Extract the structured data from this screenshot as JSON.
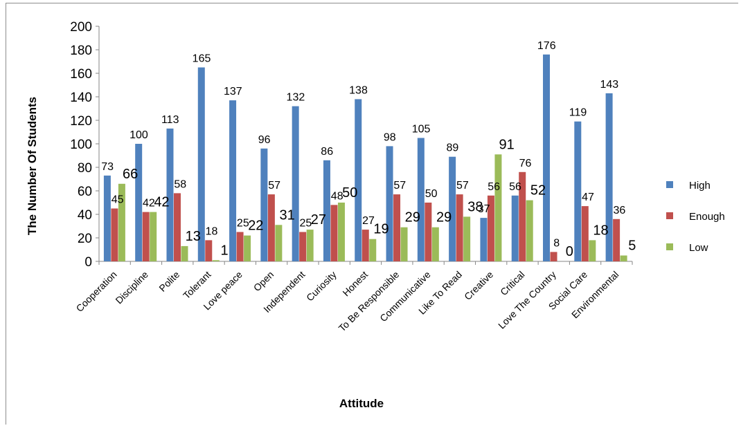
{
  "chart_data": {
    "type": "bar",
    "title": "",
    "xlabel": "Attitude",
    "ylabel": "The Number Of Students",
    "ylim": [
      0,
      200
    ],
    "yticks": [
      0,
      20,
      40,
      60,
      80,
      100,
      120,
      140,
      160,
      180,
      200
    ],
    "grid": false,
    "legend_position": "right",
    "categories": [
      "Cooperation",
      "Discipline",
      "Polite",
      "Tolerant",
      "Love peace",
      "Open",
      "Independent",
      "Curiosity",
      "Honest",
      "To Be Responsible",
      "Communicative",
      "Like To Read",
      "Creative",
      "Critical",
      "Love The Country",
      "Social Care",
      "Environmental"
    ],
    "series": [
      {
        "name": "High",
        "color": "#4f81bd",
        "values": [
          73,
          100,
          113,
          165,
          137,
          96,
          132,
          86,
          138,
          98,
          105,
          89,
          37,
          56,
          176,
          119,
          143
        ]
      },
      {
        "name": "Enough",
        "color": "#c0504d",
        "values": [
          45,
          42,
          58,
          18,
          25,
          57,
          25,
          48,
          27,
          57,
          50,
          57,
          56,
          76,
          8,
          47,
          36
        ]
      },
      {
        "name": "Low",
        "color": "#9bbb59",
        "values": [
          66,
          42,
          13,
          1,
          22,
          31,
          27,
          50,
          19,
          29,
          29,
          38,
          91,
          52,
          0,
          18,
          5
        ]
      }
    ]
  }
}
